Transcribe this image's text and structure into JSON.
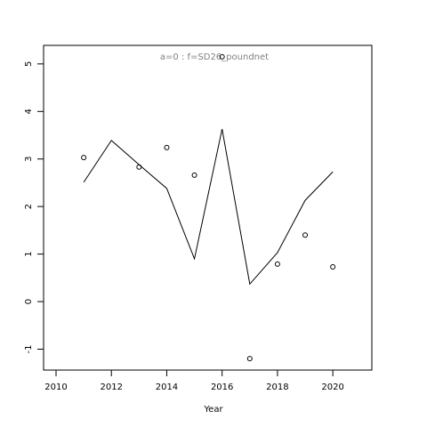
{
  "chart_data": {
    "type": "line",
    "title": "a=0  :  f=SD26_poundnet",
    "x_label": "Year",
    "x": [
      2011,
      2012,
      2013,
      2014,
      2015,
      2016,
      2017,
      2018,
      2019,
      2020
    ],
    "series": [
      {
        "type": "line",
        "color": "#000000",
        "values": [
          2.51,
          3.39,
          2.88,
          2.38,
          0.9,
          3.63,
          0.37,
          1.03,
          2.13,
          2.73
        ]
      },
      {
        "type": "scatter",
        "color": "#000000",
        "values": [
          3.03,
          null,
          2.83,
          3.24,
          2.66,
          5.15,
          -1.2,
          0.79,
          1.4,
          0.73
        ]
      }
    ],
    "xlim": [
      2009.55,
      2021.41
    ],
    "xticks": [
      2010,
      2012,
      2014,
      2016,
      2018,
      2020
    ],
    "ylim": [
      -1.44,
      5.39
    ],
    "yticks": [
      -1,
      0,
      1,
      2,
      3,
      4,
      5
    ],
    "title_color": "#808080"
  }
}
